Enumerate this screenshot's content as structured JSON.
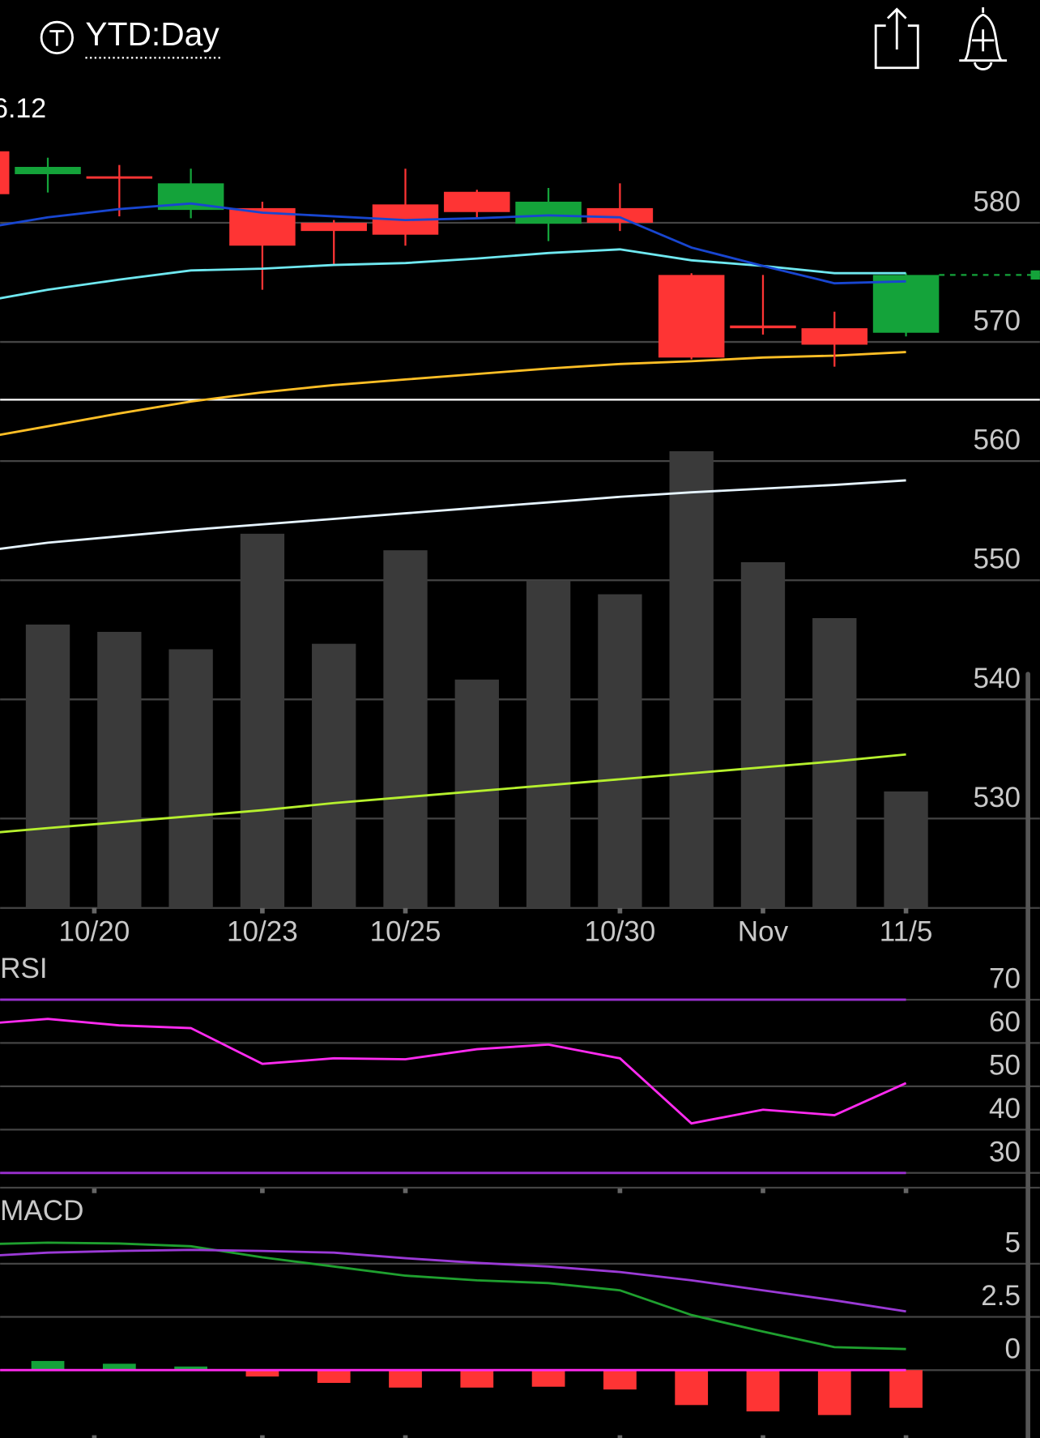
{
  "header": {
    "range": "YTD:Day",
    "price": "6.12"
  },
  "chart_data": [
    {
      "type": "candlestick",
      "x": [
        0,
        1,
        2,
        3,
        4,
        5,
        6,
        7,
        8,
        9,
        10,
        11,
        12,
        13
      ],
      "open": [
        586.0,
        584.08,
        583.9,
        581.08,
        581.23,
        580.0,
        581.54,
        582.6,
        579.92,
        581.23,
        575.62,
        571.38,
        571.15,
        570.77
      ],
      "high": [
        586.5,
        585.46,
        584.85,
        584.54,
        581.77,
        580.23,
        584.54,
        582.77,
        582.92,
        583.31,
        575.77,
        575.62,
        572.54,
        575.77
      ],
      "low": [
        582.0,
        582.54,
        580.54,
        580.38,
        574.38,
        576.54,
        578.08,
        580.46,
        578.46,
        579.31,
        568.54,
        570.62,
        567.92,
        570.46
      ],
      "close": [
        582.4,
        584.69,
        583.7,
        583.31,
        578.08,
        579.31,
        579.0,
        580.9,
        581.77,
        580.0,
        568.69,
        571.15,
        569.77,
        575.62
      ],
      "up_color": "#14a33a",
      "down_color": "#fe3434",
      "series": [
        {
          "color": "#e6f4ff",
          "values": [
            552.38,
            553.15,
            553.69,
            554.23,
            554.69,
            555.15,
            555.62,
            556.08,
            556.54,
            557.0,
            557.38,
            557.69,
            558.0,
            558.38
          ]
        },
        {
          "color": "#b6f02e",
          "values": [
            528.69,
            529.2,
            529.7,
            530.2,
            530.7,
            531.3,
            531.8,
            532.3,
            532.8,
            533.3,
            533.8,
            534.3,
            534.8,
            535.38
          ]
        },
        {
          "color": "#ffbf26",
          "values": [
            561.85,
            562.92,
            564.0,
            565.0,
            565.77,
            566.38,
            566.85,
            567.31,
            567.77,
            568.15,
            568.38,
            568.69,
            568.85,
            569.15
          ]
        },
        {
          "color": "#6fe8f0",
          "values": [
            573.31,
            574.38,
            575.23,
            576.0,
            576.15,
            576.46,
            576.62,
            577.0,
            577.46,
            577.77,
            576.85,
            576.38,
            575.77,
            575.77
          ]
        },
        {
          "color": "#1846d0",
          "values": [
            579.46,
            580.46,
            581.15,
            581.62,
            580.85,
            580.54,
            580.23,
            580.38,
            580.62,
            580.46,
            577.92,
            576.38,
            574.92,
            575.08
          ]
        }
      ],
      "hline": 565.15,
      "hline_color": "#ffffff",
      "last_price_line": true,
      "xlim": [
        0.333,
        14.872
      ],
      "ylim": [
        522.5,
        591
      ],
      "yticks": [
        530,
        540,
        550,
        560,
        570,
        580
      ],
      "xticks": [
        {
          "value": 1.65,
          "label": "10/20"
        },
        {
          "value": 4,
          "label": "10/23"
        },
        {
          "value": 6,
          "label": "10/25"
        },
        {
          "value": 9,
          "label": "10/30"
        },
        {
          "value": 11,
          "label": "Nov"
        },
        {
          "value": 13,
          "label": "11/5"
        }
      ],
      "grid": true
    },
    {
      "type": "bar",
      "x": [
        0,
        1,
        2,
        3,
        4,
        5,
        6,
        7,
        8,
        9,
        10,
        11,
        12,
        13
      ],
      "values": [
        null,
        309,
        301,
        282,
        408,
        288,
        390,
        249,
        357,
        342,
        498,
        377,
        316,
        127
      ],
      "color": "#3a3a3a",
      "xlim": [
        0.333,
        14.872
      ],
      "ylim": [
        0,
        890
      ]
    },
    {
      "type": "line",
      "title": "RSI",
      "x": [
        0,
        1,
        2,
        3,
        4,
        5,
        6,
        7,
        8,
        9,
        10,
        11,
        12,
        13
      ],
      "series": [
        {
          "color": "#ff2bf0",
          "values": [
            64.29,
            65.56,
            64.07,
            63.44,
            55.19,
            56.46,
            56.24,
            58.57,
            59.63,
            56.46,
            41.43,
            44.6,
            43.33,
            50.74
          ]
        }
      ],
      "reference_lines": [
        70,
        30
      ],
      "reference_color": "#9b30d0",
      "xlim": [
        0.333,
        14.872
      ],
      "ylim": [
        26.6,
        80.6
      ],
      "yticks": [
        30,
        40,
        50,
        60,
        70
      ],
      "grid": true
    },
    {
      "type": "macd",
      "title": "MACD",
      "x": [
        0,
        1,
        2,
        3,
        4,
        5,
        6,
        7,
        8,
        9,
        10,
        11,
        12,
        13
      ],
      "series": [
        {
          "color": "#1fa02f",
          "values": [
            5.91,
            5.99,
            5.95,
            5.82,
            5.3,
            4.87,
            4.44,
            4.22,
            4.09,
            3.75,
            2.59,
            1.81,
            1.08,
            0.99
          ]
        },
        {
          "color": "#9b3ad6",
          "values": [
            5.34,
            5.52,
            5.6,
            5.65,
            5.6,
            5.52,
            5.26,
            5.04,
            4.87,
            4.61,
            4.22,
            3.75,
            3.28,
            2.76
          ]
        }
      ],
      "histogram": [
        null,
        0.43,
        0.3,
        0.17,
        -0.3,
        -0.6,
        -0.82,
        -0.82,
        -0.78,
        -0.91,
        -1.64,
        -1.94,
        -2.11,
        -1.77
      ],
      "up_color": "#14a33a",
      "down_color": "#fe3434",
      "zero_color": "#ff2bf0",
      "xlim": [
        0.333,
        14.872
      ],
      "ylim": [
        -3.06,
        8.36
      ],
      "yticks": [
        0,
        2.5,
        5
      ],
      "grid": true
    }
  ]
}
